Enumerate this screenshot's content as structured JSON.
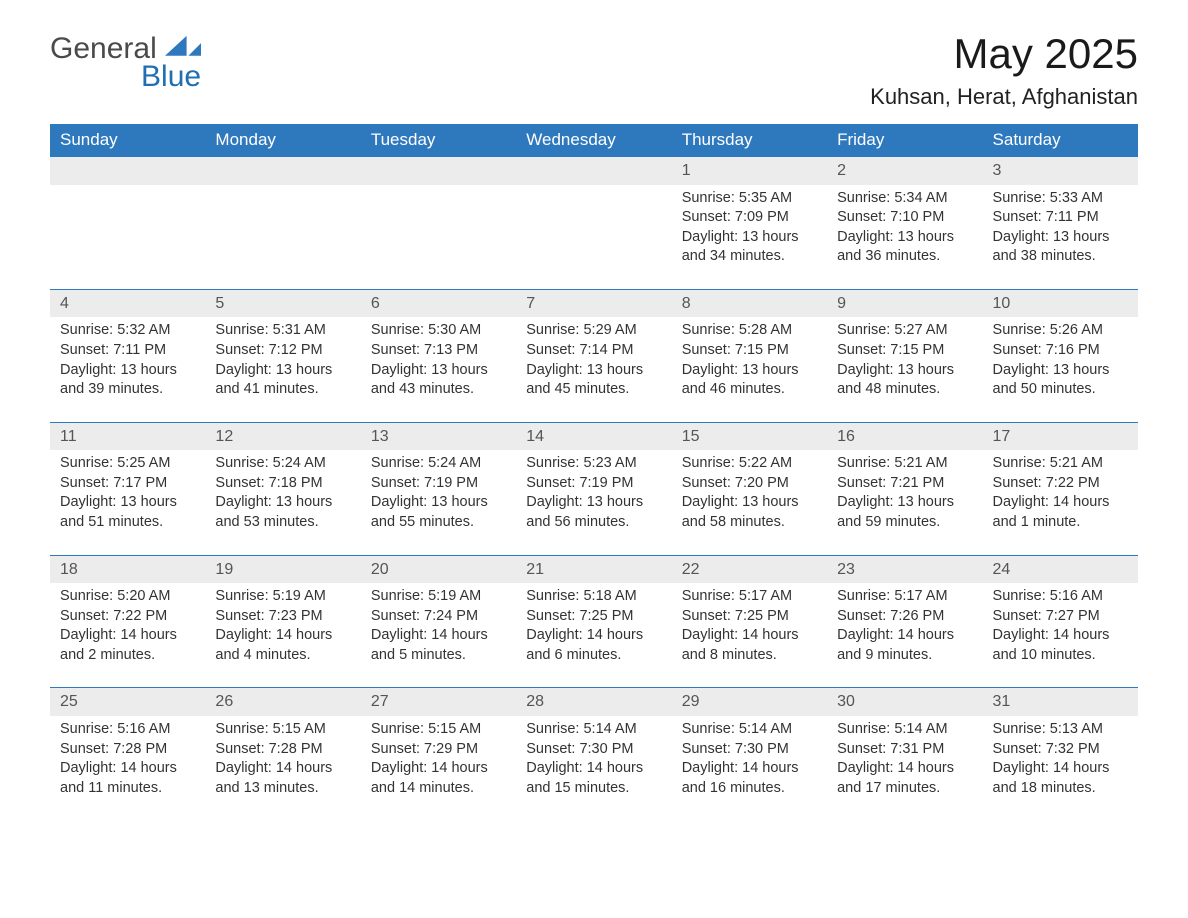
{
  "brand": {
    "general": "General",
    "blue": "Blue"
  },
  "title": "May 2025",
  "location": "Kuhsan, Herat, Afghanistan",
  "colors": {
    "header_bg": "#2e78bd",
    "header_text": "#ffffff",
    "daynum_bg": "#ececec",
    "daynum_border": "#2e78bd",
    "body_text": "#333333",
    "logo_blue": "#1f6fb2",
    "logo_gray": "#4a4a4a",
    "page_bg": "#ffffff"
  },
  "weekdays": [
    "Sunday",
    "Monday",
    "Tuesday",
    "Wednesday",
    "Thursday",
    "Friday",
    "Saturday"
  ],
  "weeks": [
    [
      null,
      null,
      null,
      null,
      {
        "n": "1",
        "sunrise": "Sunrise: 5:35 AM",
        "sunset": "Sunset: 7:09 PM",
        "day": "Daylight: 13 hours and 34 minutes."
      },
      {
        "n": "2",
        "sunrise": "Sunrise: 5:34 AM",
        "sunset": "Sunset: 7:10 PM",
        "day": "Daylight: 13 hours and 36 minutes."
      },
      {
        "n": "3",
        "sunrise": "Sunrise: 5:33 AM",
        "sunset": "Sunset: 7:11 PM",
        "day": "Daylight: 13 hours and 38 minutes."
      }
    ],
    [
      {
        "n": "4",
        "sunrise": "Sunrise: 5:32 AM",
        "sunset": "Sunset: 7:11 PM",
        "day": "Daylight: 13 hours and 39 minutes."
      },
      {
        "n": "5",
        "sunrise": "Sunrise: 5:31 AM",
        "sunset": "Sunset: 7:12 PM",
        "day": "Daylight: 13 hours and 41 minutes."
      },
      {
        "n": "6",
        "sunrise": "Sunrise: 5:30 AM",
        "sunset": "Sunset: 7:13 PM",
        "day": "Daylight: 13 hours and 43 minutes."
      },
      {
        "n": "7",
        "sunrise": "Sunrise: 5:29 AM",
        "sunset": "Sunset: 7:14 PM",
        "day": "Daylight: 13 hours and 45 minutes."
      },
      {
        "n": "8",
        "sunrise": "Sunrise: 5:28 AM",
        "sunset": "Sunset: 7:15 PM",
        "day": "Daylight: 13 hours and 46 minutes."
      },
      {
        "n": "9",
        "sunrise": "Sunrise: 5:27 AM",
        "sunset": "Sunset: 7:15 PM",
        "day": "Daylight: 13 hours and 48 minutes."
      },
      {
        "n": "10",
        "sunrise": "Sunrise: 5:26 AM",
        "sunset": "Sunset: 7:16 PM",
        "day": "Daylight: 13 hours and 50 minutes."
      }
    ],
    [
      {
        "n": "11",
        "sunrise": "Sunrise: 5:25 AM",
        "sunset": "Sunset: 7:17 PM",
        "day": "Daylight: 13 hours and 51 minutes."
      },
      {
        "n": "12",
        "sunrise": "Sunrise: 5:24 AM",
        "sunset": "Sunset: 7:18 PM",
        "day": "Daylight: 13 hours and 53 minutes."
      },
      {
        "n": "13",
        "sunrise": "Sunrise: 5:24 AM",
        "sunset": "Sunset: 7:19 PM",
        "day": "Daylight: 13 hours and 55 minutes."
      },
      {
        "n": "14",
        "sunrise": "Sunrise: 5:23 AM",
        "sunset": "Sunset: 7:19 PM",
        "day": "Daylight: 13 hours and 56 minutes."
      },
      {
        "n": "15",
        "sunrise": "Sunrise: 5:22 AM",
        "sunset": "Sunset: 7:20 PM",
        "day": "Daylight: 13 hours and 58 minutes."
      },
      {
        "n": "16",
        "sunrise": "Sunrise: 5:21 AM",
        "sunset": "Sunset: 7:21 PM",
        "day": "Daylight: 13 hours and 59 minutes."
      },
      {
        "n": "17",
        "sunrise": "Sunrise: 5:21 AM",
        "sunset": "Sunset: 7:22 PM",
        "day": "Daylight: 14 hours and 1 minute."
      }
    ],
    [
      {
        "n": "18",
        "sunrise": "Sunrise: 5:20 AM",
        "sunset": "Sunset: 7:22 PM",
        "day": "Daylight: 14 hours and 2 minutes."
      },
      {
        "n": "19",
        "sunrise": "Sunrise: 5:19 AM",
        "sunset": "Sunset: 7:23 PM",
        "day": "Daylight: 14 hours and 4 minutes."
      },
      {
        "n": "20",
        "sunrise": "Sunrise: 5:19 AM",
        "sunset": "Sunset: 7:24 PM",
        "day": "Daylight: 14 hours and 5 minutes."
      },
      {
        "n": "21",
        "sunrise": "Sunrise: 5:18 AM",
        "sunset": "Sunset: 7:25 PM",
        "day": "Daylight: 14 hours and 6 minutes."
      },
      {
        "n": "22",
        "sunrise": "Sunrise: 5:17 AM",
        "sunset": "Sunset: 7:25 PM",
        "day": "Daylight: 14 hours and 8 minutes."
      },
      {
        "n": "23",
        "sunrise": "Sunrise: 5:17 AM",
        "sunset": "Sunset: 7:26 PM",
        "day": "Daylight: 14 hours and 9 minutes."
      },
      {
        "n": "24",
        "sunrise": "Sunrise: 5:16 AM",
        "sunset": "Sunset: 7:27 PM",
        "day": "Daylight: 14 hours and 10 minutes."
      }
    ],
    [
      {
        "n": "25",
        "sunrise": "Sunrise: 5:16 AM",
        "sunset": "Sunset: 7:28 PM",
        "day": "Daylight: 14 hours and 11 minutes."
      },
      {
        "n": "26",
        "sunrise": "Sunrise: 5:15 AM",
        "sunset": "Sunset: 7:28 PM",
        "day": "Daylight: 14 hours and 13 minutes."
      },
      {
        "n": "27",
        "sunrise": "Sunrise: 5:15 AM",
        "sunset": "Sunset: 7:29 PM",
        "day": "Daylight: 14 hours and 14 minutes."
      },
      {
        "n": "28",
        "sunrise": "Sunrise: 5:14 AM",
        "sunset": "Sunset: 7:30 PM",
        "day": "Daylight: 14 hours and 15 minutes."
      },
      {
        "n": "29",
        "sunrise": "Sunrise: 5:14 AM",
        "sunset": "Sunset: 7:30 PM",
        "day": "Daylight: 14 hours and 16 minutes."
      },
      {
        "n": "30",
        "sunrise": "Sunrise: 5:14 AM",
        "sunset": "Sunset: 7:31 PM",
        "day": "Daylight: 14 hours and 17 minutes."
      },
      {
        "n": "31",
        "sunrise": "Sunrise: 5:13 AM",
        "sunset": "Sunset: 7:32 PM",
        "day": "Daylight: 14 hours and 18 minutes."
      }
    ]
  ]
}
